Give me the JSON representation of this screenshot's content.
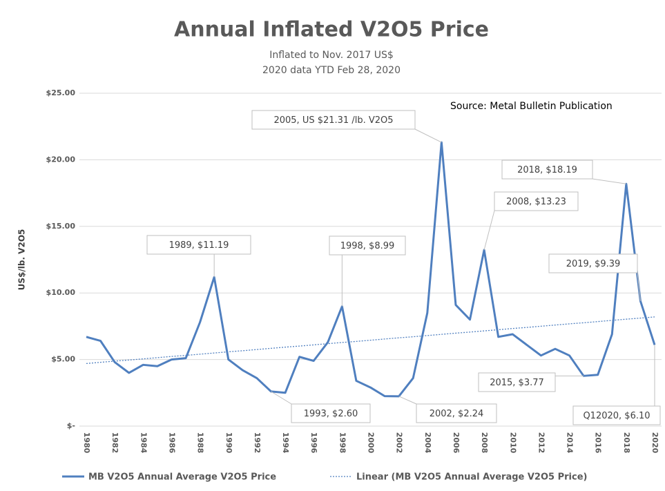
{
  "chart_data": {
    "type": "line",
    "title": "Annual Inflated V2O5 Price",
    "subtitle": [
      "Inflated to Nov. 2017 US$",
      "2020 data YTD Feb 28, 2020"
    ],
    "y_label": "US$/lb. V2O5",
    "source": "Source:  Metal Bulletin Publication",
    "categories": [
      "1980",
      null,
      "1982",
      null,
      "1984",
      null,
      "1986",
      null,
      "1988",
      null,
      "1990",
      null,
      "1992",
      null,
      "1994",
      null,
      "1996",
      null,
      "1998",
      null,
      "2000",
      null,
      "2002",
      null,
      "2004",
      null,
      "2006",
      null,
      "2008",
      null,
      "2010",
      null,
      "2012",
      null,
      "2014",
      null,
      "2016",
      null,
      "2018",
      null,
      "2020"
    ],
    "series": [
      {
        "name": "MB V2O5 Annual Average V2O5 Price",
        "color": "#4f7fbf",
        "style": "solid",
        "values": [
          6.7,
          6.4,
          4.8,
          4.0,
          4.6,
          4.5,
          5.0,
          5.1,
          7.8,
          11.19,
          5.0,
          4.2,
          3.6,
          2.6,
          2.5,
          5.2,
          4.9,
          6.3,
          8.99,
          3.4,
          2.9,
          2.25,
          2.24,
          3.6,
          8.5,
          21.31,
          9.1,
          8.0,
          13.23,
          6.7,
          6.9,
          6.1,
          5.3,
          5.8,
          5.3,
          3.77,
          3.85,
          6.9,
          18.19,
          9.39,
          6.1
        ]
      },
      {
        "name": "Linear (MB V2O5 Annual Average V2O5 Price)",
        "color": "#4f7fbf",
        "style": "dotted",
        "values": [
          4.7,
          4.79,
          4.88,
          4.96,
          5.05,
          5.14,
          5.23,
          5.31,
          5.4,
          5.49,
          5.58,
          5.66,
          5.75,
          5.84,
          5.93,
          6.01,
          6.1,
          6.19,
          6.28,
          6.36,
          6.45,
          6.54,
          6.63,
          6.71,
          6.8,
          6.89,
          6.98,
          7.06,
          7.15,
          7.24,
          7.33,
          7.41,
          7.5,
          7.59,
          7.68,
          7.76,
          7.85,
          7.94,
          8.03,
          8.11,
          8.2
        ]
      }
    ],
    "ylim": [
      0,
      25
    ],
    "yticks": [
      {
        "value": 0,
        "label": "$-"
      },
      {
        "value": 5,
        "label": "$5.00"
      },
      {
        "value": 10,
        "label": "$10.00"
      },
      {
        "value": 15,
        "label": "$15.00"
      },
      {
        "value": 20,
        "label": "$20.00"
      },
      {
        "value": 25,
        "label": "$25.00"
      }
    ],
    "grid": true,
    "legend": "bottom",
    "annotations": [
      "2005, US $21.31 /lb. V2O5",
      "1989,  $11.19",
      "1998, $8.99",
      "2008, $13.23",
      "2018,  $18.19",
      "2019,  $9.39",
      "1993,  $2.60",
      "2002, $2.24",
      "2015,  $3.77",
      "Q12020,  $6.10"
    ]
  }
}
